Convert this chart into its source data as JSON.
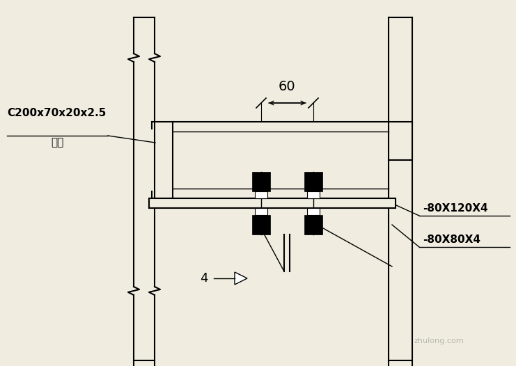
{
  "bg_color": "#f0ede0",
  "line_color": "#000000",
  "figsize": [
    7.41,
    5.26
  ],
  "dpi": 100,
  "label_c_section_top": "C200x70x20x2.5",
  "label_c_section_bot": "墙梁",
  "label_plate1": "-80X120X4",
  "label_plate2": "-80X80X4",
  "dim_60": "60",
  "dim_4": "4",
  "watermark": "zhulong.com"
}
